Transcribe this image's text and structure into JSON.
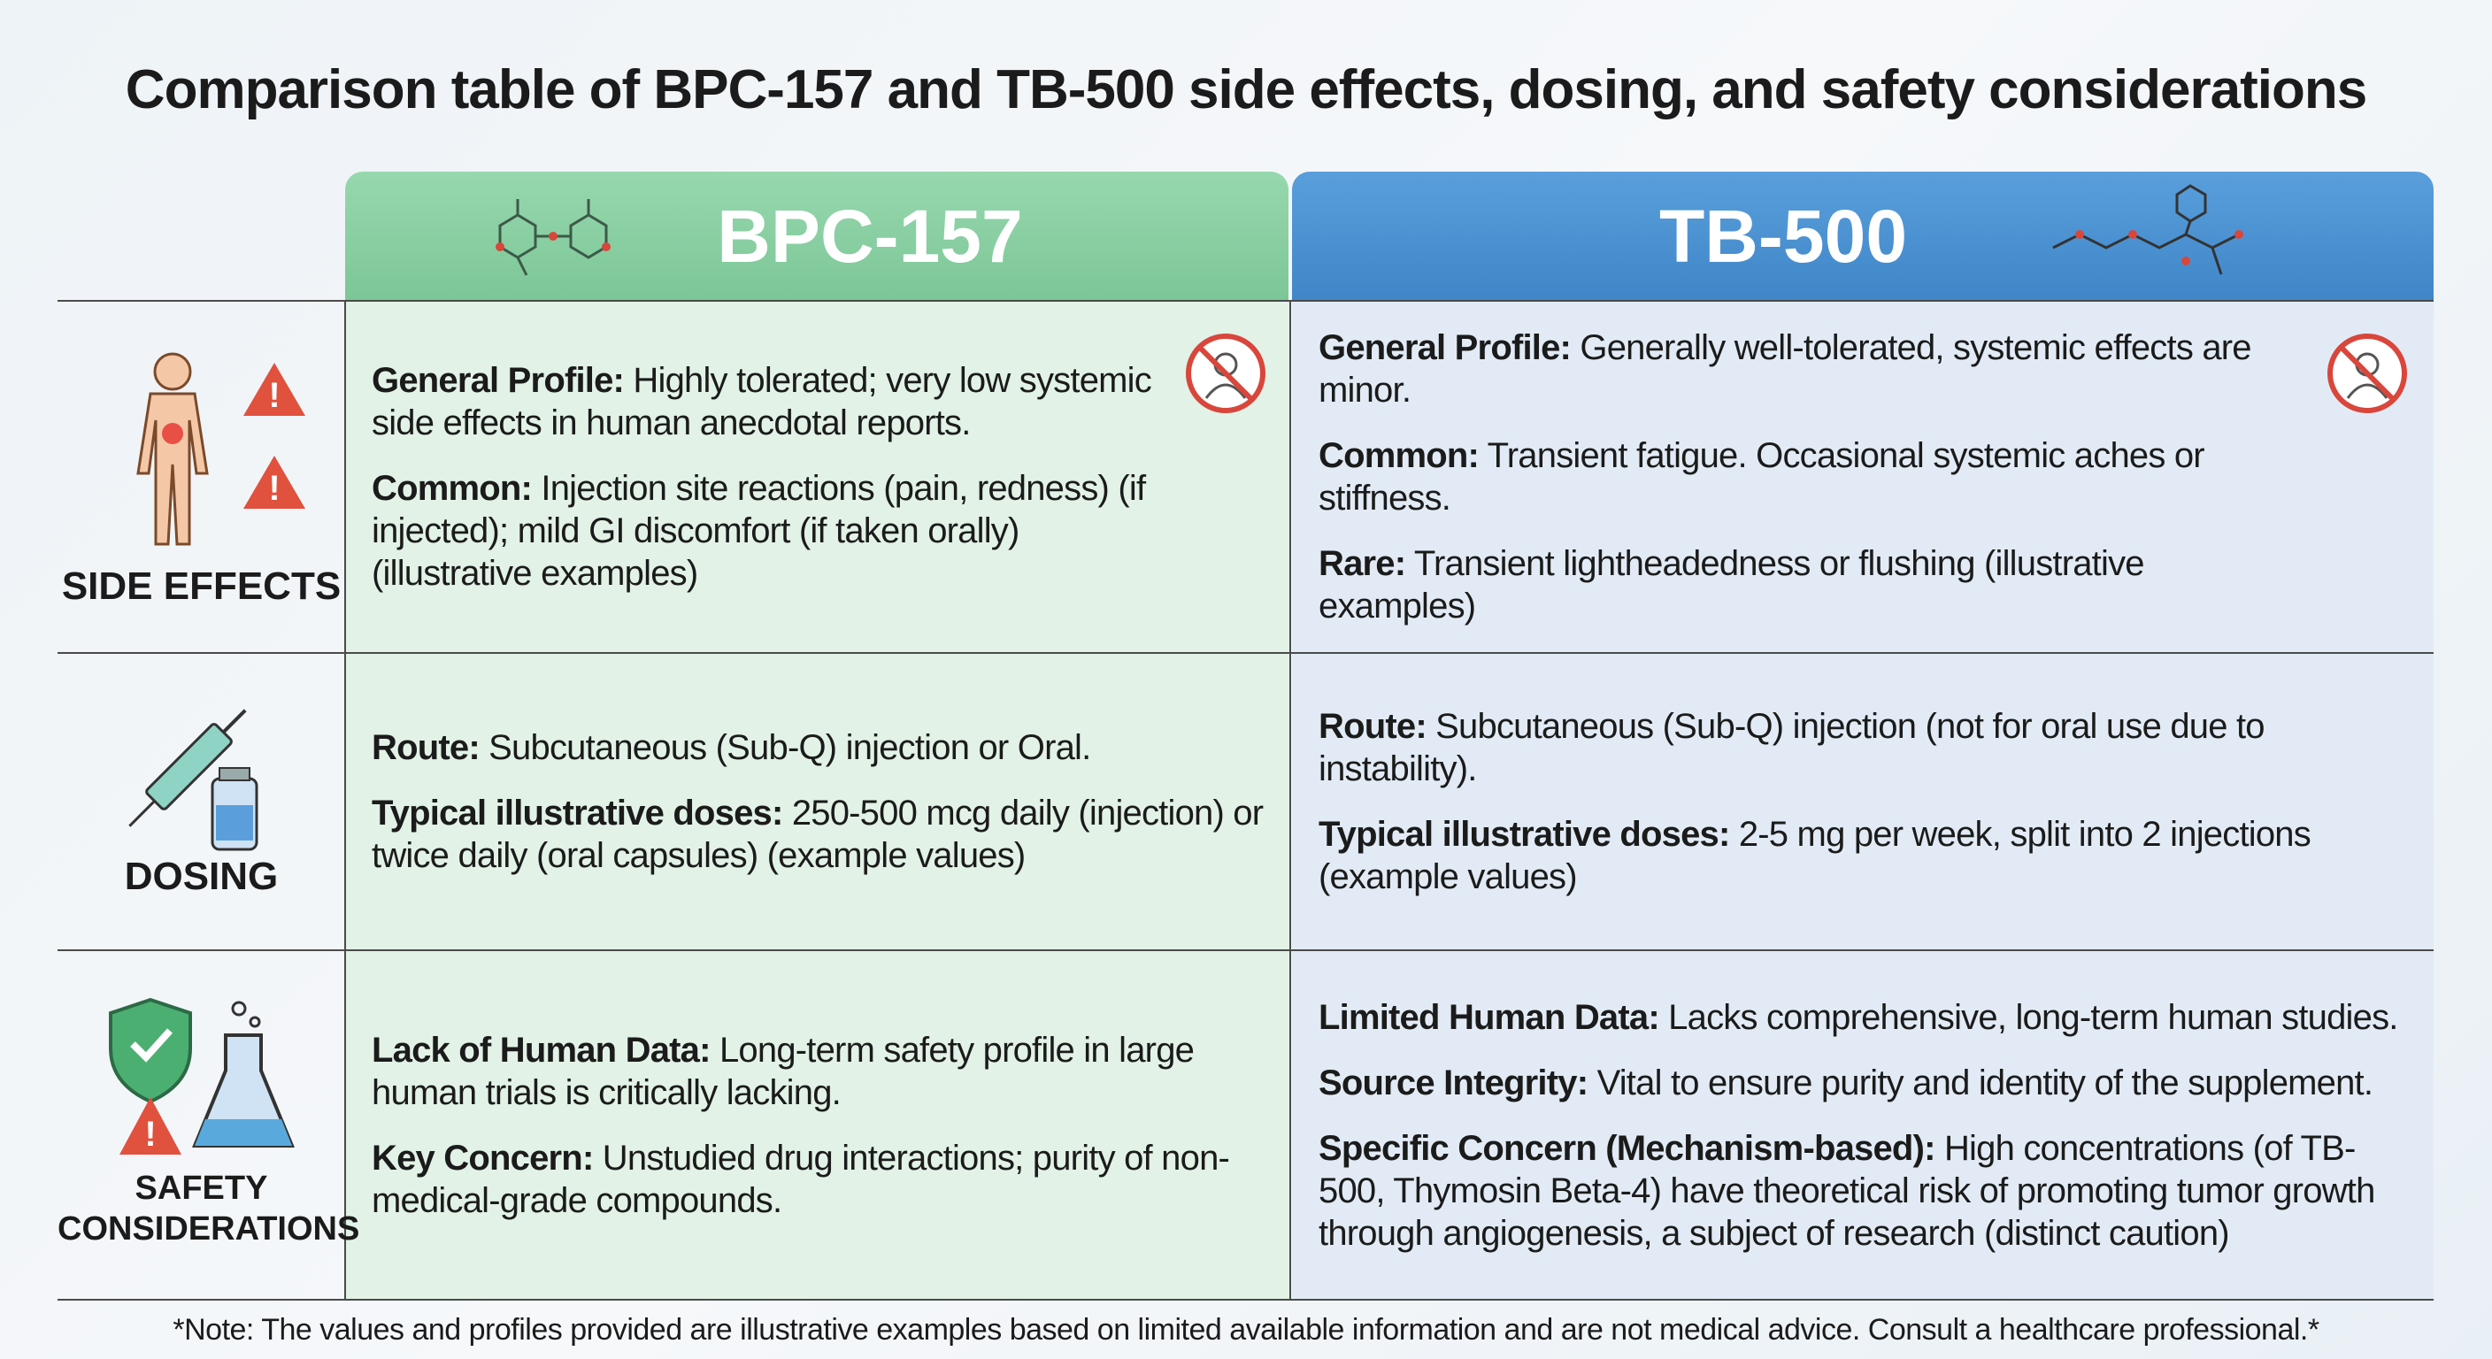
{
  "title": "Comparison table of BPC-157 and TB-500 side effects, dosing, and safety considerations",
  "columns": [
    "BPC-157",
    "TB-500"
  ],
  "rows": [
    {
      "label": "SIDE EFFECTS",
      "cells": [
        [
          {
            "label": "General Profile:",
            "text": "Highly tolerated; very low systemic side effects in human anecdotal reports."
          },
          {
            "label": "Common:",
            "text": "Injection site reactions (pain, redness) (if injected); mild GI discomfort (if taken orally) (illustrative examples)"
          }
        ],
        [
          {
            "label": "General Profile:",
            "text": "Generally well-tolerated, systemic effects are minor."
          },
          {
            "label": "Common:",
            "text": "Transient fatigue. Occasional systemic aches or stiffness."
          },
          {
            "label": "Rare:",
            "text": "Transient lightheadedness or flushing (illustrative examples)"
          }
        ]
      ]
    },
    {
      "label": "DOSING",
      "cells": [
        [
          {
            "label": "Route:",
            "text": "Subcutaneous (Sub-Q) injection or Oral."
          },
          {
            "label": "Typical illustrative doses:",
            "text": "250-500 mcg daily (injection) or twice daily (oral capsules) (example values)"
          }
        ],
        [
          {
            "label": "Route:",
            "text": "Subcutaneous (Sub-Q) injection (not for oral use due to instability)."
          },
          {
            "label": "Typical illustrative doses:",
            "text": "2-5 mg per week, split into 2 injections (example values)"
          }
        ]
      ]
    },
    {
      "label": "SAFETY CONSIDERATIONS",
      "cells": [
        [
          {
            "label": "Lack of Human Data:",
            "text": "Long-term safety profile in large human trials is critically lacking."
          },
          {
            "label": "Key Concern:",
            "text": "Unstudied drug interactions; purity of non-medical-grade compounds."
          }
        ],
        [
          {
            "label": "Limited Human Data:",
            "text": "Lacks comprehensive, long-term human studies."
          },
          {
            "label": "Source Integrity:",
            "text": "Vital to ensure purity and identity of the supplement."
          },
          {
            "label": "Specific Concern (Mechanism-based):",
            "text": "High concentrations (of TB-500, Thymosin Beta-4) have theoretical risk of promoting tumor growth through angiogenesis, a subject of research (distinct caution)"
          }
        ]
      ]
    }
  ],
  "note": "*Note: The values and profiles provided are illustrative examples based on limited available information and are not medical advice. Consult a healthcare professional.*"
}
